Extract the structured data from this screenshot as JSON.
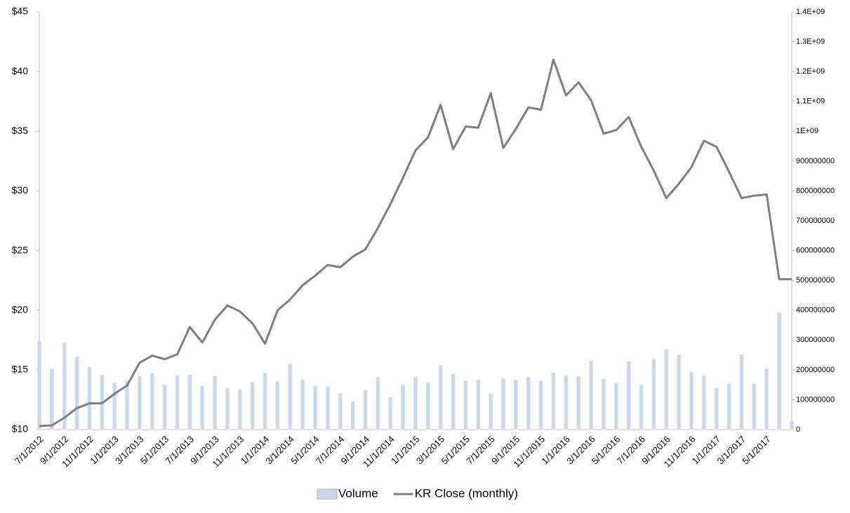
{
  "chart_data": {
    "type": "combo",
    "categories": [
      "7/1/2012",
      null,
      "9/1/2012",
      null,
      "11/1/2012",
      null,
      "1/1/2013",
      null,
      "3/1/2013",
      null,
      "5/1/2013",
      null,
      "7/1/2013",
      null,
      "9/1/2013",
      null,
      "11/1/2013",
      null,
      "1/1/2014",
      null,
      "3/1/2014",
      null,
      "5/1/2014",
      null,
      "7/1/2014",
      null,
      "9/1/2014",
      null,
      "11/1/2014",
      null,
      "1/1/2015",
      null,
      "3/1/2015",
      null,
      "5/1/2015",
      null,
      "7/1/2015",
      null,
      "9/1/2015",
      null,
      "11/1/2015",
      null,
      "1/1/2016",
      null,
      "3/1/2016",
      null,
      "5/1/2016",
      null,
      "7/1/2016",
      null,
      "9/1/2016",
      null,
      "11/1/2016",
      null,
      "1/1/2017",
      null,
      "3/1/2017",
      null,
      "5/1/2017",
      null,
      null
    ],
    "series": [
      {
        "name": "Volume",
        "type": "bar",
        "axis": "y2",
        "color": "#c9d7e8",
        "values": [
          294000000,
          204000000,
          291000000,
          244000000,
          209000000,
          183000000,
          155000000,
          164000000,
          179000000,
          188000000,
          150000000,
          181000000,
          183000000,
          146000000,
          179000000,
          139000000,
          134000000,
          160000000,
          190000000,
          162000000,
          221000000,
          167000000,
          146000000,
          143000000,
          120000000,
          94000000,
          132000000,
          176000000,
          108000000,
          150000000,
          176000000,
          157000000,
          216000000,
          186000000,
          164000000,
          167000000,
          120000000,
          171000000,
          167000000,
          176000000,
          164000000,
          190000000,
          181000000,
          179000000,
          230000000,
          169000000,
          155000000,
          228000000,
          150000000,
          237000000,
          268000000,
          251000000,
          193000000,
          181000000,
          139000000,
          153000000,
          251000000,
          153000000,
          204000000,
          392000000,
          28000000
        ]
      },
      {
        "name": "KR Close (monthly)",
        "type": "line",
        "color": "#7f7f7f",
        "values": [
          10.3,
          10.35,
          11.0,
          11.8,
          12.2,
          12.2,
          13.0,
          13.7,
          15.6,
          16.2,
          15.9,
          16.3,
          18.6,
          17.3,
          19.2,
          20.4,
          19.9,
          18.9,
          17.2,
          20.0,
          20.9,
          22.1,
          22.9,
          23.8,
          23.6,
          24.5,
          25.1,
          26.9,
          28.9,
          31.1,
          33.4,
          34.5,
          37.2,
          33.5,
          35.4,
          35.3,
          38.2,
          33.6,
          35.2,
          37.0,
          36.8,
          41.0,
          38.0,
          39.1,
          37.6,
          34.8,
          35.1,
          36.2,
          33.7,
          31.7,
          29.4,
          30.6,
          32.0,
          34.2,
          33.7,
          31.6,
          29.4,
          29.6,
          29.7,
          22.6,
          22.6
        ]
      }
    ],
    "ylim": [
      10,
      45
    ],
    "yticks": [
      {
        "value": 10,
        "label": "$10"
      },
      {
        "value": 15,
        "label": "$15"
      },
      {
        "value": 20,
        "label": "$20"
      },
      {
        "value": 25,
        "label": "$25"
      },
      {
        "value": 30,
        "label": "$30"
      },
      {
        "value": 35,
        "label": "$35"
      },
      {
        "value": 40,
        "label": "$40"
      },
      {
        "value": 45,
        "label": "$45"
      }
    ],
    "y2lim": [
      0,
      1400000000
    ],
    "y2ticks": [
      0,
      100000000,
      200000000,
      300000000,
      400000000,
      500000000,
      600000000,
      700000000,
      800000000,
      900000000,
      {
        "value": 1000000000,
        "label": "1E+09"
      },
      {
        "value": 1100000000,
        "label": "1.1E+09"
      },
      {
        "value": 1200000000,
        "label": "1.2E+09"
      },
      {
        "value": 1300000000,
        "label": "1.3E+09"
      },
      {
        "value": 1400000000,
        "label": "1.4E+09"
      }
    ],
    "grid": false,
    "legend": "bottom"
  }
}
